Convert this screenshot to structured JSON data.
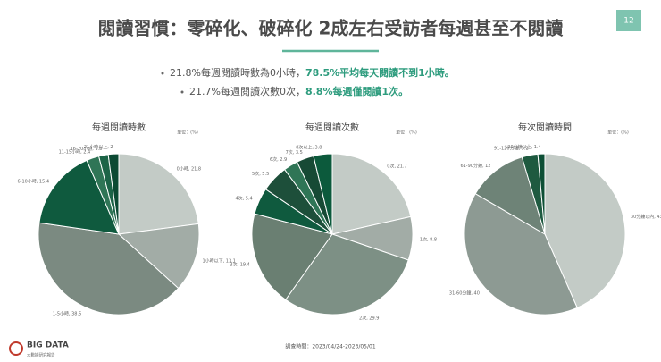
{
  "slide": {
    "title": "閱讀習慣：零碎化、破碎化 2成左右受訪者每週甚至不閱讀",
    "page_number": "12",
    "highlight_color": "#2e9c7e",
    "bullets": [
      [
        {
          "text": "21.8%每週閱讀時數為0小時，",
          "highlight": false
        },
        {
          "text": "78.5%平均每天閱讀不到1小時。",
          "highlight": true
        }
      ],
      [
        {
          "text": "21.7%每週閱讀次數0次，",
          "highlight": false
        },
        {
          "text": "8.8%每週僅閱讀1次。",
          "highlight": true
        }
      ]
    ],
    "survey_period": "調查時間：2023/04/24-2023/05/01",
    "logo_name": "BIG DATA",
    "logo_subtitle": "大數據研究報告"
  },
  "chart_data": [
    {
      "type": "pie",
      "title": "每週閱讀時數",
      "unit": "單位：(%)",
      "categories": [
        "0小時,",
        "1小時以下,",
        "1-5小時,",
        "6-10小時,",
        "11-15小時,",
        "16-20小時,",
        "21小時以上,"
      ],
      "values": [
        21.8,
        13.1,
        38.5,
        15.4,
        2.4,
        1.8,
        2.0
      ],
      "colors": [
        "#c3cbc6",
        "#a2aca6",
        "#7b8a81",
        "#0f5a3e",
        "#2f7556",
        "#1c6447",
        "#0c4a33"
      ]
    },
    {
      "type": "pie",
      "title": "每週閱讀次數",
      "unit": "單位：(%)",
      "categories": [
        "0次,",
        "1次,",
        "2次,",
        "3次,",
        "4次,",
        "5次,",
        "6次,",
        "7次,",
        "8次以上,"
      ],
      "values": [
        21.7,
        8.8,
        29.9,
        19.4,
        5.4,
        5.5,
        2.9,
        3.5,
        3.8
      ],
      "colors": [
        "#c3cbc6",
        "#a2aca6",
        "#7d9085",
        "#6a7f72",
        "#0f5a3e",
        "#1d4f3a",
        "#2f7556",
        "#174a35",
        "#0c5a3c"
      ]
    },
    {
      "type": "pie",
      "title": "每次閱讀時間",
      "unit": "單位：(%)",
      "categories": [
        "30分鐘以內,",
        "31-60分鐘,",
        "61-90分鐘,",
        "91-120分鐘,",
        "120分鐘以上,"
      ],
      "values": [
        43.4,
        40.0,
        12.0,
        3.2,
        1.4
      ],
      "colors": [
        "#c3cbc6",
        "#8d9a93",
        "#6e8377",
        "#1e5a40",
        "#0d4f35"
      ]
    }
  ]
}
